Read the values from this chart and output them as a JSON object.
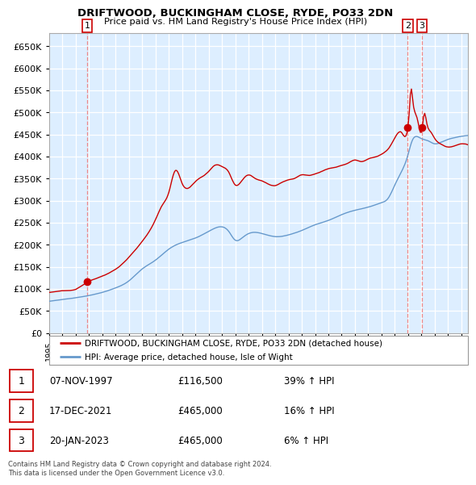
{
  "title1": "DRIFTWOOD, BUCKINGHAM CLOSE, RYDE, PO33 2DN",
  "title2": "Price paid vs. HM Land Registry's House Price Index (HPI)",
  "sale_points": [
    {
      "label": "1",
      "date_idx": 1997.85,
      "price": 116500
    },
    {
      "label": "2",
      "date_idx": 2021.96,
      "price": 465000
    },
    {
      "label": "3",
      "date_idx": 2023.05,
      "price": 465000
    }
  ],
  "legend_line1": "DRIFTWOOD, BUCKINGHAM CLOSE, RYDE, PO33 2DN (detached house)",
  "legend_line2": "HPI: Average price, detached house, Isle of Wight",
  "table_rows": [
    [
      "1",
      "07-NOV-1997",
      "£116,500",
      "39% ↑ HPI"
    ],
    [
      "2",
      "17-DEC-2021",
      "£465,000",
      "16% ↑ HPI"
    ],
    [
      "3",
      "20-JAN-2023",
      "£465,000",
      "6% ↑ HPI"
    ]
  ],
  "footer": "Contains HM Land Registry data © Crown copyright and database right 2024.\nThis data is licensed under the Open Government Licence v3.0.",
  "hpi_color": "#6699cc",
  "property_color": "#cc0000",
  "marker_color": "#cc0000",
  "vline_color": "#ee8888",
  "plot_bg": "#ddeeff",
  "ylim": [
    0,
    680000
  ],
  "yticks": [
    0,
    50000,
    100000,
    150000,
    200000,
    250000,
    300000,
    350000,
    400000,
    450000,
    500000,
    550000,
    600000,
    650000
  ],
  "xlim_start": 1995.0,
  "xlim_end": 2026.5
}
